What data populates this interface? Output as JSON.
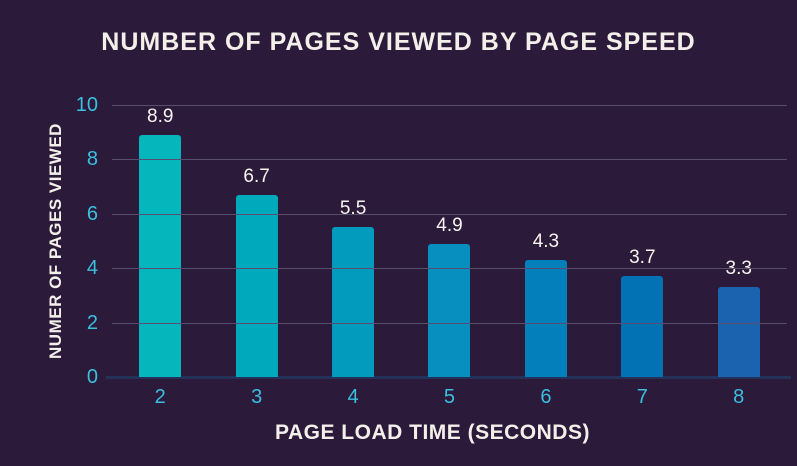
{
  "chart_data": {
    "type": "bar",
    "title": "NUMBER OF PAGES VIEWED BY PAGE SPEED",
    "xlabel": "PAGE LOAD TIME (SECONDS)",
    "ylabel": "NUMER OF PAGES VIEWED",
    "categories": [
      "2",
      "3",
      "4",
      "5",
      "6",
      "7",
      "8"
    ],
    "values": [
      8.9,
      6.7,
      5.5,
      4.9,
      4.3,
      3.7,
      3.3
    ],
    "value_labels": [
      "8.9",
      "6.7",
      "5.5",
      "4.9",
      "4.3",
      "3.7",
      "3.3"
    ],
    "ylim": [
      0,
      10
    ],
    "yticks": [
      0,
      2,
      4,
      6,
      8,
      10
    ],
    "grid": "horizontal",
    "legend": "none",
    "bar_colors": [
      "#06b6bd",
      "#00a9bc",
      "#029bbd",
      "#078fc0",
      "#0380bb",
      "#0272b4",
      "#1b63ae"
    ],
    "colors": {
      "background": "#2c1a3b",
      "title_text": "#f3efe9",
      "axis_title_text": "#f3efe9",
      "tick_text": "#3bbfdf",
      "value_label_text": "#f7f4ee",
      "gridline": "#584d6e",
      "baseline": "#243158"
    }
  }
}
